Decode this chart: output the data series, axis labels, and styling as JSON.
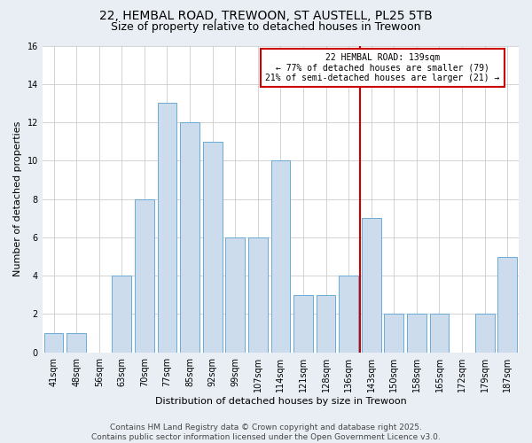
{
  "title1": "22, HEMBAL ROAD, TREWOON, ST AUSTELL, PL25 5TB",
  "title2": "Size of property relative to detached houses in Trewoon",
  "xlabel": "Distribution of detached houses by size in Trewoon",
  "ylabel": "Number of detached properties",
  "categories": [
    "41sqm",
    "48sqm",
    "56sqm",
    "63sqm",
    "70sqm",
    "77sqm",
    "85sqm",
    "92sqm",
    "99sqm",
    "107sqm",
    "114sqm",
    "121sqm",
    "128sqm",
    "136sqm",
    "143sqm",
    "150sqm",
    "158sqm",
    "165sqm",
    "172sqm",
    "179sqm",
    "187sqm"
  ],
  "values": [
    1,
    1,
    0,
    4,
    8,
    13,
    12,
    11,
    6,
    6,
    10,
    3,
    3,
    4,
    7,
    2,
    2,
    2,
    0,
    2,
    5
  ],
  "bar_color": "#ccdcec",
  "bar_edge_color": "#6aaad4",
  "vline_index": 13,
  "vline_color": "#cc0000",
  "annotation_text": "22 HEMBAL ROAD: 139sqm\n← 77% of detached houses are smaller (79)\n21% of semi-detached houses are larger (21) →",
  "annotation_box_color": "#ffffff",
  "annotation_box_edge_color": "#cc0000",
  "ylim": [
    0,
    16
  ],
  "yticks": [
    0,
    2,
    4,
    6,
    8,
    10,
    12,
    14,
    16
  ],
  "footer_text": "Contains HM Land Registry data © Crown copyright and database right 2025.\nContains public sector information licensed under the Open Government Licence v3.0.",
  "bg_color": "#e8eef4",
  "plot_bg_color": "#ffffff",
  "grid_color": "#cccccc",
  "title1_fontsize": 10,
  "title2_fontsize": 9,
  "label_fontsize": 8,
  "tick_fontsize": 7,
  "footer_fontsize": 6.5
}
